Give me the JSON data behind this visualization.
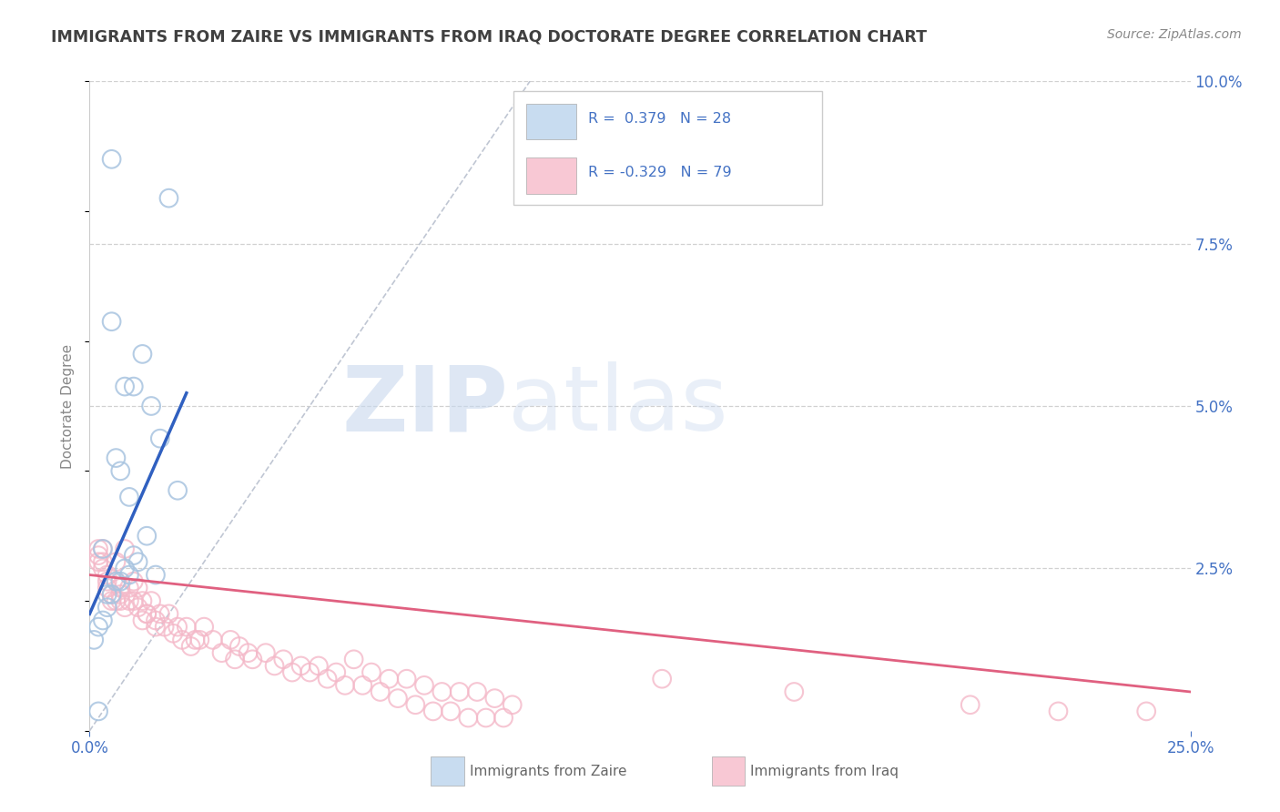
{
  "title": "IMMIGRANTS FROM ZAIRE VS IMMIGRANTS FROM IRAQ DOCTORATE DEGREE CORRELATION CHART",
  "source": "Source: ZipAtlas.com",
  "ylabel": "Doctorate Degree",
  "xlim": [
    0.0,
    0.25
  ],
  "ylim": [
    0.0,
    0.1
  ],
  "xticks": [
    0.0,
    0.25
  ],
  "xticklabels": [
    "0.0%",
    "25.0%"
  ],
  "yticks_right": [
    0.0,
    0.025,
    0.05,
    0.075,
    0.1
  ],
  "yticklabels_right": [
    "",
    "2.5%",
    "5.0%",
    "7.5%",
    "10.0%"
  ],
  "watermark_zip": "ZIP",
  "watermark_atlas": "atlas",
  "zaire_color": "#a8c4e0",
  "iraq_color": "#f4b8c8",
  "zaire_line_color": "#3060c0",
  "iraq_line_color": "#e06080",
  "background_color": "#ffffff",
  "grid_color": "#d0d0d0",
  "axis_color": "#4472c4",
  "title_color": "#404040",
  "zaire_scatter_x": [
    0.005,
    0.008,
    0.01,
    0.012,
    0.014,
    0.016,
    0.005,
    0.006,
    0.007,
    0.009,
    0.003,
    0.018,
    0.015,
    0.011,
    0.009,
    0.007,
    0.005,
    0.004,
    0.003,
    0.002,
    0.001,
    0.013,
    0.01,
    0.008,
    0.02,
    0.006,
    0.004,
    0.002
  ],
  "zaire_scatter_y": [
    0.063,
    0.053,
    0.053,
    0.058,
    0.05,
    0.045,
    0.088,
    0.042,
    0.04,
    0.036,
    0.028,
    0.082,
    0.024,
    0.026,
    0.024,
    0.023,
    0.021,
    0.019,
    0.017,
    0.016,
    0.014,
    0.03,
    0.027,
    0.025,
    0.037,
    0.023,
    0.021,
    0.003
  ],
  "iraq_scatter_x": [
    0.002,
    0.003,
    0.004,
    0.005,
    0.006,
    0.007,
    0.008,
    0.009,
    0.01,
    0.011,
    0.012,
    0.013,
    0.014,
    0.016,
    0.018,
    0.02,
    0.022,
    0.024,
    0.026,
    0.028,
    0.032,
    0.034,
    0.036,
    0.04,
    0.044,
    0.048,
    0.052,
    0.056,
    0.06,
    0.064,
    0.068,
    0.072,
    0.076,
    0.08,
    0.084,
    0.088,
    0.092,
    0.096,
    0.002,
    0.003,
    0.004,
    0.005,
    0.006,
    0.007,
    0.009,
    0.011,
    0.013,
    0.015,
    0.017,
    0.019,
    0.021,
    0.023,
    0.025,
    0.03,
    0.033,
    0.037,
    0.042,
    0.046,
    0.05,
    0.054,
    0.058,
    0.062,
    0.066,
    0.07,
    0.074,
    0.078,
    0.082,
    0.086,
    0.09,
    0.094,
    0.002,
    0.003,
    0.004,
    0.006,
    0.007,
    0.008,
    0.01,
    0.012,
    0.015,
    0.13,
    0.16,
    0.2,
    0.22,
    0.24
  ],
  "iraq_scatter_y": [
    0.026,
    0.028,
    0.024,
    0.02,
    0.026,
    0.022,
    0.028,
    0.02,
    0.023,
    0.022,
    0.02,
    0.018,
    0.02,
    0.018,
    0.018,
    0.016,
    0.016,
    0.014,
    0.016,
    0.014,
    0.014,
    0.013,
    0.012,
    0.012,
    0.011,
    0.01,
    0.01,
    0.009,
    0.011,
    0.009,
    0.008,
    0.008,
    0.007,
    0.006,
    0.006,
    0.006,
    0.005,
    0.004,
    0.028,
    0.026,
    0.023,
    0.021,
    0.023,
    0.02,
    0.022,
    0.019,
    0.018,
    0.017,
    0.016,
    0.015,
    0.014,
    0.013,
    0.014,
    0.012,
    0.011,
    0.011,
    0.01,
    0.009,
    0.009,
    0.008,
    0.007,
    0.007,
    0.006,
    0.005,
    0.004,
    0.003,
    0.003,
    0.002,
    0.002,
    0.002,
    0.027,
    0.025,
    0.022,
    0.02,
    0.021,
    0.019,
    0.02,
    0.017,
    0.016,
    0.008,
    0.006,
    0.004,
    0.003,
    0.003
  ],
  "zaire_trendline_x": [
    0.0,
    0.022
  ],
  "zaire_trendline_y": [
    0.018,
    0.052
  ],
  "iraq_trendline_x": [
    0.0,
    0.25
  ],
  "iraq_trendline_y": [
    0.024,
    0.006
  ],
  "ref_line_x": [
    0.0,
    0.1
  ],
  "ref_line_y": [
    0.0,
    0.1
  ]
}
